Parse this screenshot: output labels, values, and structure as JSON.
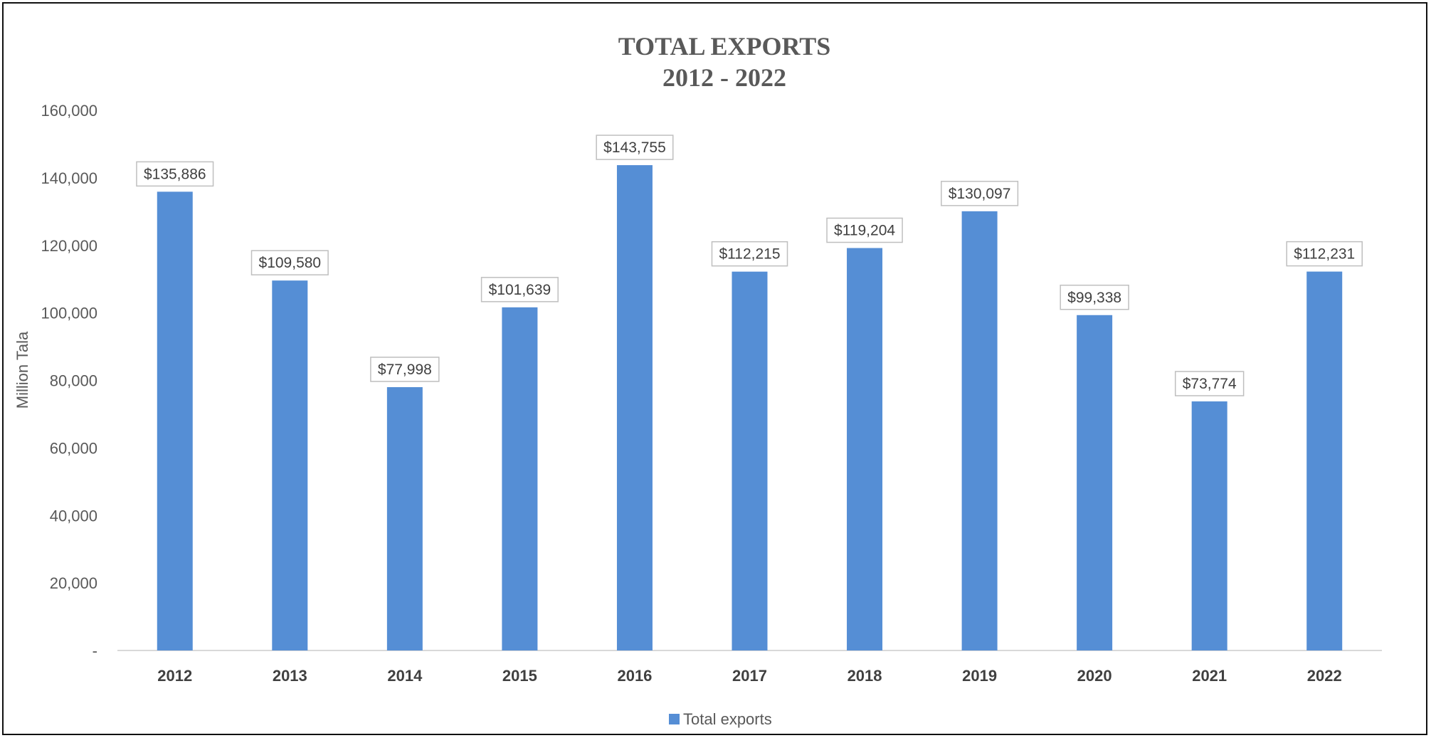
{
  "chart_data": {
    "type": "bar",
    "title": [
      "TOTAL EXPORTS",
      "2012 - 2022"
    ],
    "xlabel": "",
    "ylabel": "Million Tala",
    "categories": [
      "2012",
      "2013",
      "2014",
      "2015",
      "2016",
      "2017",
      "2018",
      "2019",
      "2020",
      "2021",
      "2022"
    ],
    "series": [
      {
        "name": "Total exports",
        "values": [
          135886,
          109580,
          77998,
          101639,
          143755,
          112215,
          119204,
          130097,
          99338,
          73774,
          112231
        ],
        "data_labels": [
          "$135,886",
          "$109,580",
          "$77,998",
          "$101,639",
          "$143,755",
          "$112,215",
          "$119,204",
          "$130,097",
          "$99,338",
          "$73,774",
          "$112,231"
        ],
        "color": "#558ED5"
      }
    ],
    "ylim": [
      0,
      160000
    ],
    "yticks": [
      0,
      20000,
      40000,
      60000,
      80000,
      100000,
      120000,
      140000,
      160000
    ],
    "ytick_labels": [
      "-",
      "20,000",
      "40,000",
      "60,000",
      "80,000",
      "100,000",
      "120,000",
      "140,000",
      "160,000"
    ],
    "grid": false,
    "legend_position": "bottom"
  }
}
